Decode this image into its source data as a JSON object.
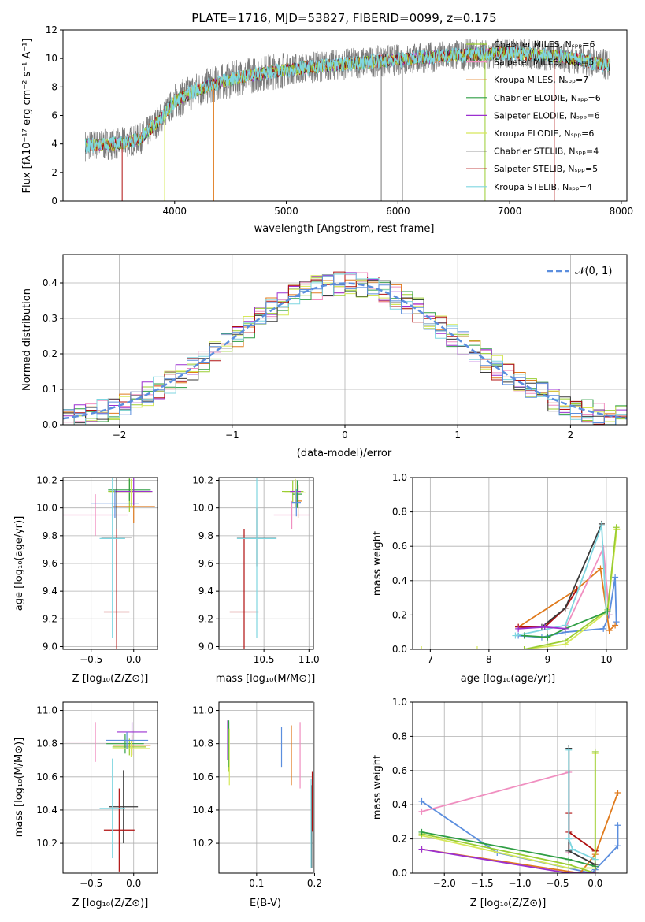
{
  "page_title": "PLATE=1716, MJD=53827, FIBERID=0099, z=0.175",
  "palette": {
    "miles_chab": "#9acd32",
    "miles_salp": "#f08fc0",
    "miles_krou": "#e07b1e",
    "elodie_chab": "#2f9e44",
    "elodie_salp": "#9b30d0",
    "elodie_krou": "#d6e85a",
    "stelib_chab": "#3a3a3a",
    "stelib_salp": "#b01010",
    "stelib_krou": "#7fd6e0",
    "data": "#7a7a7a",
    "normal": "#5b8ede"
  },
  "chart_data": [
    {
      "id": "spectrum",
      "type": "line",
      "title": "PLATE=1716, MJD=53827, FIBERID=0099, z=0.175",
      "xlabel": "wavelength [Angstrom, rest frame]",
      "ylabel": "Flux [fλ10⁻¹⁷ erg cm⁻² s⁻¹ A⁻¹]",
      "xlim": [
        3000,
        8050
      ],
      "ylim": [
        0,
        12
      ],
      "xticks": [
        "4000",
        "5000",
        "6000",
        "7000",
        "8000"
      ],
      "yticks": [
        "0",
        "2",
        "4",
        "6",
        "8",
        "10",
        "12"
      ],
      "legend_position": "top-right",
      "legend": [
        "Chabrier MILES, Nₛₚₚ=6",
        "Salpeter MILES, Nₛₚₚ=5",
        "Kroupa MILES, Nₛₚₚ=7",
        "Chabrier ELODIE, Nₛₚₚ=6",
        "Salpeter ELODIE, Nₛₚₚ=6",
        "Kroupa ELODIE, Nₛₚₚ=6",
        "Chabrier STELIB, Nₛₚₚ=4",
        "Salpeter STELIB, Nₛₚₚ=5",
        "Kroupa STELIB, Nₛₚₚ=4"
      ],
      "continuum": {
        "x": [
          3200,
          3500,
          3700,
          3900,
          4000,
          4200,
          4400,
          4600,
          4800,
          5000,
          5500,
          6000,
          6500,
          7000,
          7500,
          7900
        ],
        "y": [
          3.9,
          4.0,
          4.4,
          6.0,
          7.0,
          7.8,
          8.3,
          8.7,
          9.0,
          9.2,
          9.6,
          9.9,
          10.2,
          10.4,
          10.1,
          9.5
        ]
      },
      "spikes": [
        3530,
        3910,
        4350,
        5850,
        6040,
        6780,
        7400
      ]
    },
    {
      "id": "residuals",
      "type": "area",
      "xlabel": "(data-model)/error",
      "ylabel": "Normed distribution",
      "xlim": [
        -2.5,
        2.5
      ],
      "ylim": [
        0,
        0.48
      ],
      "xticks": [
        "−2",
        "−1",
        "0",
        "1",
        "2"
      ],
      "yticks": [
        "0.0",
        "0.1",
        "0.2",
        "0.3",
        "0.4"
      ],
      "legend_position": "top-right",
      "legend": [
        "𝒩(0, 1)"
      ],
      "bin_width": 0.1
    },
    {
      "id": "age-vs-z",
      "type": "scatter",
      "xlabel": "Z [log₁₀(Z/Z⊙)]",
      "ylabel": "age  [log₁₀(age/yr)]",
      "xlim": [
        -0.83,
        0.28
      ],
      "ylim": [
        8.98,
        10.22
      ],
      "xticks": [
        "−0.5",
        "0.0"
      ],
      "yticks": [
        "9.0",
        "9.2",
        "9.4",
        "9.6",
        "9.8",
        "10.0",
        "10.2"
      ],
      "points": [
        {
          "x": -0.05,
          "y": 10.12,
          "xerr": 0.25,
          "yerr": 0.15,
          "color": "#9acd32"
        },
        {
          "x": -0.45,
          "y": 9.95,
          "xerr": 0.38,
          "yerr": 0.15,
          "color": "#f08fc0"
        },
        {
          "x": 0.0,
          "y": 10.01,
          "xerr": 0.25,
          "yerr": 0.12,
          "color": "#e07b1e"
        },
        {
          "x": -0.05,
          "y": 10.13,
          "xerr": 0.25,
          "yerr": 0.08,
          "color": "#2f9e44"
        },
        {
          "x": 0.0,
          "y": 10.12,
          "xerr": 0.22,
          "yerr": 0.1,
          "color": "#9b30d0"
        },
        {
          "x": -0.03,
          "y": 10.11,
          "xerr": 0.25,
          "yerr": 0.1,
          "color": "#d6e85a"
        },
        {
          "x": -0.2,
          "y": 9.79,
          "xerr": 0.18,
          "yerr": 0.7,
          "color": "#3a3a3a"
        },
        {
          "x": -0.2,
          "y": 9.25,
          "xerr": 0.15,
          "yerr": 0.6,
          "color": "#b01010"
        },
        {
          "x": -0.25,
          "y": 9.78,
          "xerr": 0.15,
          "yerr": 0.72,
          "color": "#7fd6e0"
        },
        {
          "x": -0.22,
          "y": 10.03,
          "xerr": 0.28,
          "yerr": 0.1,
          "color": "#5b8ede"
        }
      ]
    },
    {
      "id": "age-vs-mass",
      "type": "scatter",
      "xlabel": "mass [log₁₀(M/M⊙)]",
      "ylabel": "",
      "xlim": [
        10.0,
        11.05
      ],
      "ylim": [
        8.98,
        10.22
      ],
      "xticks": [
        "10.5",
        "11.0"
      ],
      "yticks": [
        "9.0",
        "9.2",
        "9.4",
        "9.6",
        "9.8",
        "10.0",
        "10.2"
      ],
      "points": [
        {
          "x": 10.82,
          "y": 10.12,
          "xerr": 0.12,
          "yerr": 0.08,
          "color": "#9acd32"
        },
        {
          "x": 10.81,
          "y": 9.95,
          "xerr": 0.2,
          "yerr": 0.1,
          "color": "#f08fc0"
        },
        {
          "x": 10.88,
          "y": 10.05,
          "xerr": 0.04,
          "yerr": 0.12,
          "color": "#e07b1e"
        },
        {
          "x": 10.87,
          "y": 10.1,
          "xerr": 0.05,
          "yerr": 0.1,
          "color": "#2f9e44"
        },
        {
          "x": 10.85,
          "y": 10.12,
          "xerr": 0.06,
          "yerr": 0.08,
          "color": "#9b30d0"
        },
        {
          "x": 10.85,
          "y": 10.11,
          "xerr": 0.12,
          "yerr": 0.1,
          "color": "#d6e85a"
        },
        {
          "x": 10.42,
          "y": 9.79,
          "xerr": 0.22,
          "yerr": 0.21,
          "color": "#3a3a3a"
        },
        {
          "x": 10.28,
          "y": 9.25,
          "xerr": 0.16,
          "yerr": 0.6,
          "color": "#b01010"
        },
        {
          "x": 10.42,
          "y": 9.78,
          "xerr": 0.22,
          "yerr": 0.72,
          "color": "#7fd6e0"
        },
        {
          "x": 10.86,
          "y": 10.04,
          "xerr": 0.05,
          "yerr": 0.1,
          "color": "#5b8ede"
        }
      ]
    },
    {
      "id": "mass-weight-vs-age",
      "type": "line",
      "xlabel": "age  [log₁₀(age/yr)]",
      "ylabel": "mass weight",
      "xlim": [
        6.7,
        10.35
      ],
      "ylim": [
        0,
        1
      ],
      "xticks": [
        "7",
        "8",
        "9",
        "10"
      ],
      "yticks": [
        "0.0",
        "0.2",
        "0.4",
        "0.6",
        "0.8",
        "1.0"
      ],
      "series": [
        {
          "color": "#5b8ede",
          "x": [
            8.5,
            8.9,
            9.3,
            9.95,
            10.05,
            10.15,
            10.17
          ],
          "y": [
            0.08,
            0.07,
            0.1,
            0.12,
            0.2,
            0.42,
            0.16
          ]
        },
        {
          "color": "#e07b1e",
          "x": [
            8.5,
            9.5,
            9.9,
            10.05,
            10.15
          ],
          "y": [
            0.13,
            0.35,
            0.47,
            0.11,
            0.14
          ]
        },
        {
          "color": "#b01010",
          "x": [
            8.5,
            8.95,
            9.3,
            9.5
          ],
          "y": [
            0.13,
            0.13,
            0.24,
            0.35
          ]
        },
        {
          "color": "#f08fc0",
          "x": [
            9.3,
            9.95,
            10.05
          ],
          "y": [
            0.12,
            0.59,
            0.2
          ]
        },
        {
          "color": "#d6e85a",
          "x": [
            6.85,
            7.8,
            8.6,
            9.3,
            10.02,
            10.18
          ],
          "y": [
            0.0,
            0.0,
            0.0,
            0.03,
            0.22,
            0.7
          ]
        },
        {
          "color": "#9acd32",
          "x": [
            8.6,
            9.3,
            10.02,
            10.17
          ],
          "y": [
            0.0,
            0.05,
            0.23,
            0.71
          ]
        },
        {
          "color": "#2f9e44",
          "x": [
            8.6,
            9.0,
            9.3,
            10.02
          ],
          "y": [
            0.08,
            0.07,
            0.12,
            0.22
          ]
        },
        {
          "color": "#3a3a3a",
          "x": [
            8.9,
            9.3,
            9.92
          ],
          "y": [
            0.13,
            0.24,
            0.73
          ]
        },
        {
          "color": "#7fd6e0",
          "x": [
            8.45,
            9.3,
            9.92,
            10.0
          ],
          "y": [
            0.08,
            0.14,
            0.72,
            0.2
          ]
        },
        {
          "color": "#9b30d0",
          "x": [
            8.5,
            8.95,
            9.3
          ],
          "y": [
            0.12,
            0.13,
            0.12
          ]
        }
      ]
    },
    {
      "id": "mass-vs-z",
      "type": "scatter",
      "xlabel": "Z [log₁₀(Z/Z⊙)]",
      "ylabel": "mass [log₁₀(M/M⊙)]",
      "xlim": [
        -0.83,
        0.28
      ],
      "ylim": [
        10.02,
        11.05
      ],
      "xticks": [
        "−0.5",
        "0.0"
      ],
      "yticks": [
        "10.2",
        "10.4",
        "10.6",
        "10.8",
        "11.0"
      ],
      "points": [
        {
          "x": -0.05,
          "y": 10.78,
          "xerr": 0.2,
          "yerr": 0.05,
          "color": "#9acd32"
        },
        {
          "x": -0.45,
          "y": 10.81,
          "xerr": 0.35,
          "yerr": 0.12,
          "color": "#f08fc0"
        },
        {
          "x": -0.02,
          "y": 10.79,
          "xerr": 0.22,
          "yerr": 0.06,
          "color": "#e07b1e"
        },
        {
          "x": -0.1,
          "y": 10.8,
          "xerr": 0.22,
          "yerr": 0.06,
          "color": "#2f9e44"
        },
        {
          "x": -0.02,
          "y": 10.87,
          "xerr": 0.18,
          "yerr": 0.06,
          "color": "#9b30d0"
        },
        {
          "x": -0.03,
          "y": 10.77,
          "xerr": 0.22,
          "yerr": 0.05,
          "color": "#d6e85a"
        },
        {
          "x": -0.12,
          "y": 10.42,
          "xerr": 0.17,
          "yerr": 0.22,
          "color": "#3a3a3a"
        },
        {
          "x": -0.17,
          "y": 10.28,
          "xerr": 0.18,
          "yerr": 0.25,
          "color": "#b01010"
        },
        {
          "x": -0.25,
          "y": 10.41,
          "xerr": 0.15,
          "yerr": 0.3,
          "color": "#7fd6e0"
        },
        {
          "x": -0.08,
          "y": 10.82,
          "xerr": 0.25,
          "yerr": 0.05,
          "color": "#5b8ede"
        }
      ]
    },
    {
      "id": "mass-vs-ebv",
      "type": "scatter",
      "xlabel": "E(B-V)",
      "ylabel": "",
      "xlim": [
        0.035,
        0.198
      ],
      "ylim": [
        10.02,
        11.05
      ],
      "xticks": [
        "0.1",
        "0.2"
      ],
      "yticks": [
        "10.2",
        "10.4",
        "10.6",
        "10.8",
        "11.0"
      ],
      "points": [
        {
          "x": 0.052,
          "y": 10.78,
          "xerr": 0,
          "yerr": 0.15,
          "color": "#9acd32"
        },
        {
          "x": 0.175,
          "y": 10.73,
          "xerr": 0,
          "yerr": 0.2,
          "color": "#f08fc0"
        },
        {
          "x": 0.16,
          "y": 10.73,
          "xerr": 0,
          "yerr": 0.18,
          "color": "#e07b1e"
        },
        {
          "x": 0.052,
          "y": 10.8,
          "xerr": 0,
          "yerr": 0.14,
          "color": "#2f9e44"
        },
        {
          "x": 0.05,
          "y": 10.82,
          "xerr": 0,
          "yerr": 0.12,
          "color": "#9b30d0"
        },
        {
          "x": 0.053,
          "y": 10.72,
          "xerr": 0,
          "yerr": 0.17,
          "color": "#d6e85a"
        },
        {
          "x": 0.195,
          "y": 10.3,
          "xerr": 0,
          "yerr": 0.25,
          "color": "#3a3a3a"
        },
        {
          "x": 0.196,
          "y": 10.45,
          "xerr": 0,
          "yerr": 0.18,
          "color": "#b01010"
        },
        {
          "x": 0.194,
          "y": 10.32,
          "xerr": 0,
          "yerr": 0.27,
          "color": "#7fd6e0"
        },
        {
          "x": 0.143,
          "y": 10.78,
          "xerr": 0,
          "yerr": 0.12,
          "color": "#5b8ede"
        }
      ]
    },
    {
      "id": "mass-weight-vs-z",
      "type": "line",
      "xlabel": "Z [log₁₀(Z/Z⊙)]",
      "ylabel": "mass weight",
      "xlim": [
        -2.42,
        0.42
      ],
      "ylim": [
        0,
        1
      ],
      "xticks": [
        "−2.0",
        "−1.5",
        "−1.0",
        "−0.5",
        "0.0"
      ],
      "yticks": [
        "0.0",
        "0.2",
        "0.4",
        "0.6",
        "0.8",
        "1.0"
      ],
      "series": [
        {
          "color": "#5b8ede",
          "x": [
            -2.3,
            -1.3,
            -0.05,
            0.0,
            0.3,
            0.3
          ],
          "y": [
            0.42,
            0.12,
            0.0,
            0.02,
            0.16,
            0.28
          ]
        },
        {
          "color": "#e07b1e",
          "x": [
            -2.3,
            -0.2,
            0.0,
            0.3
          ],
          "y": [
            0.14,
            0.0,
            0.11,
            0.47
          ]
        },
        {
          "color": "#b01010",
          "x": [
            -0.35,
            -0.35,
            0.0,
            0.0
          ],
          "y": [
            0.35,
            0.24,
            0.13,
            0.13
          ]
        },
        {
          "color": "#f08fc0",
          "x": [
            -2.3,
            -0.35,
            -0.35
          ],
          "y": [
            0.36,
            0.59,
            0.12
          ]
        },
        {
          "color": "#d6e85a",
          "x": [
            -2.3,
            -0.35,
            0.0,
            0.0
          ],
          "y": [
            0.22,
            0.03,
            0.03,
            0.7
          ]
        },
        {
          "color": "#9acd32",
          "x": [
            -2.3,
            -0.35,
            0.0,
            0.0
          ],
          "y": [
            0.23,
            0.05,
            0.0,
            0.71
          ]
        },
        {
          "color": "#2f9e44",
          "x": [
            -2.3,
            -0.35,
            0.0
          ],
          "y": [
            0.24,
            0.08,
            0.04
          ]
        },
        {
          "color": "#3a3a3a",
          "x": [
            -0.35,
            -0.35,
            0.0
          ],
          "y": [
            0.73,
            0.13,
            0.05
          ]
        },
        {
          "color": "#7fd6e0",
          "x": [
            -0.35,
            -0.35,
            -0.3,
            0.0
          ],
          "y": [
            0.72,
            0.2,
            0.14,
            0.08
          ]
        },
        {
          "color": "#9b30d0",
          "x": [
            -2.3,
            -0.35,
            0.0
          ],
          "y": [
            0.14,
            0.0,
            0.0
          ]
        }
      ]
    }
  ]
}
